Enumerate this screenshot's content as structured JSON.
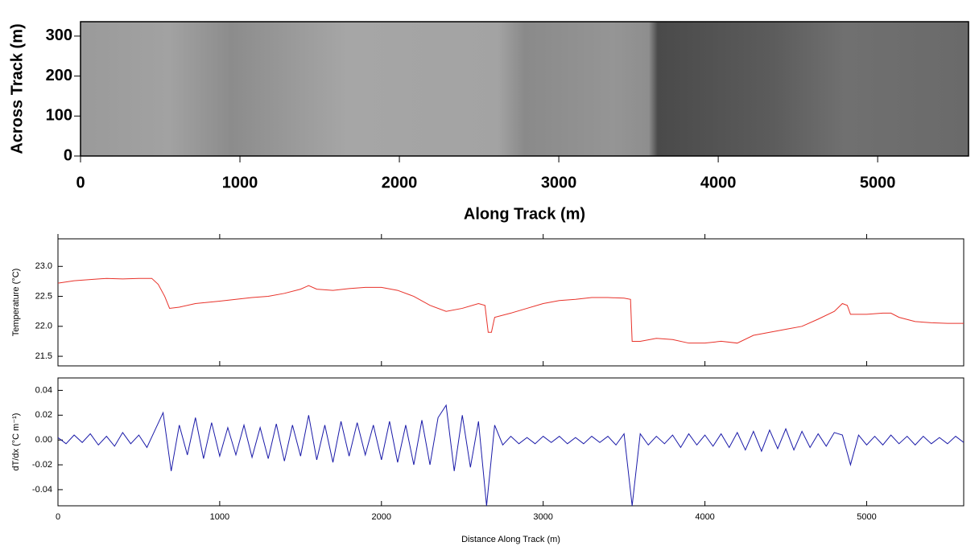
{
  "chart_data": [
    {
      "type": "image",
      "xlabel": "Along Track (m)",
      "ylabel": "Across Track (m)",
      "xlim": [
        0,
        5570
      ],
      "ylim": [
        0,
        336
      ],
      "xticks": [
        0,
        1000,
        2000,
        3000,
        4000,
        5000
      ],
      "yticks": [
        0,
        100,
        200,
        300
      ]
    },
    {
      "type": "line",
      "ylabel": "Temperature (°C)",
      "color": "#e8322a",
      "xlim": [
        0,
        5600
      ],
      "ylim": [
        21.34,
        23.46
      ],
      "xticks": [
        0,
        1000,
        2000,
        3000,
        4000,
        5000
      ],
      "yticks": [
        {
          "value": 21.5,
          "label": "21.5"
        },
        {
          "value": 22,
          "label": "22.0"
        },
        {
          "value": 22.5,
          "label": "22.5"
        },
        {
          "value": 23,
          "label": "23.0"
        }
      ],
      "x": [
        0,
        100,
        200,
        300,
        400,
        500,
        580,
        620,
        660,
        690,
        750,
        850,
        1000,
        1100,
        1200,
        1300,
        1400,
        1500,
        1550,
        1600,
        1700,
        1800,
        1900,
        2000,
        2100,
        2200,
        2300,
        2400,
        2500,
        2600,
        2640,
        2660,
        2680,
        2700,
        2800,
        2900,
        3000,
        3100,
        3200,
        3300,
        3400,
        3500,
        3540,
        3550,
        3600,
        3700,
        3800,
        3900,
        4000,
        4100,
        4200,
        4300,
        4400,
        4500,
        4600,
        4700,
        4800,
        4850,
        4880,
        4900,
        5000,
        5100,
        5150,
        5200,
        5300,
        5400,
        5500,
        5600
      ],
      "values": [
        22.72,
        22.76,
        22.78,
        22.8,
        22.79,
        22.8,
        22.8,
        22.7,
        22.5,
        22.3,
        22.32,
        22.38,
        22.42,
        22.45,
        22.48,
        22.5,
        22.55,
        22.62,
        22.68,
        22.62,
        22.6,
        22.63,
        22.65,
        22.65,
        22.6,
        22.5,
        22.35,
        22.25,
        22.3,
        22.38,
        22.35,
        21.9,
        21.9,
        22.15,
        22.22,
        22.3,
        22.38,
        22.43,
        22.45,
        22.48,
        22.48,
        22.47,
        22.45,
        21.75,
        21.75,
        21.8,
        21.78,
        21.72,
        21.72,
        21.75,
        21.72,
        21.85,
        21.9,
        21.95,
        22.0,
        22.12,
        22.25,
        22.38,
        22.35,
        22.2,
        22.2,
        22.22,
        22.22,
        22.15,
        22.08,
        22.06,
        22.05,
        22.05
      ]
    },
    {
      "type": "line",
      "ylabel": "dT/dx (°C m⁻¹)",
      "xlabel": "Distance Along Track (m)",
      "color": "#1a1aa8",
      "xlim": [
        0,
        5600
      ],
      "ylim": [
        -0.053,
        0.05
      ],
      "xticks": [
        0,
        1000,
        2000,
        3000,
        4000,
        5000
      ],
      "yticks": [
        {
          "value": -0.04,
          "label": "-0.04"
        },
        {
          "value": -0.02,
          "label": "-0.02"
        },
        {
          "value": 0,
          "label": "0.00"
        },
        {
          "value": 0.02,
          "label": "0.02"
        },
        {
          "value": 0.04,
          "label": "0.04"
        }
      ],
      "x": [
        0,
        50,
        100,
        150,
        200,
        250,
        300,
        350,
        400,
        450,
        500,
        550,
        600,
        650,
        700,
        750,
        800,
        850,
        900,
        950,
        1000,
        1050,
        1100,
        1150,
        1200,
        1250,
        1300,
        1350,
        1400,
        1450,
        1500,
        1550,
        1600,
        1650,
        1700,
        1750,
        1800,
        1850,
        1900,
        1950,
        2000,
        2050,
        2100,
        2150,
        2200,
        2250,
        2300,
        2350,
        2400,
        2450,
        2500,
        2550,
        2600,
        2650,
        2700,
        2750,
        2800,
        2850,
        2900,
        2950,
        3000,
        3050,
        3100,
        3150,
        3200,
        3250,
        3300,
        3350,
        3400,
        3450,
        3500,
        3550,
        3600,
        3650,
        3700,
        3750,
        3800,
        3850,
        3900,
        3950,
        4000,
        4050,
        4100,
        4150,
        4200,
        4250,
        4300,
        4350,
        4400,
        4450,
        4500,
        4550,
        4600,
        4650,
        4700,
        4750,
        4800,
        4850,
        4900,
        4950,
        5000,
        5050,
        5100,
        5150,
        5200,
        5250,
        5300,
        5350,
        5400,
        5450,
        5500,
        5550,
        5600
      ],
      "values": [
        0.002,
        -0.003,
        0.004,
        -0.002,
        0.005,
        -0.004,
        0.003,
        -0.005,
        0.006,
        -0.003,
        0.004,
        -0.006,
        0.008,
        0.022,
        -0.025,
        0.012,
        -0.012,
        0.018,
        -0.015,
        0.014,
        -0.013,
        0.01,
        -0.012,
        0.012,
        -0.014,
        0.01,
        -0.015,
        0.013,
        -0.017,
        0.012,
        -0.013,
        0.02,
        -0.016,
        0.012,
        -0.018,
        0.015,
        -0.013,
        0.014,
        -0.012,
        0.012,
        -0.016,
        0.015,
        -0.018,
        0.012,
        -0.02,
        0.016,
        -0.02,
        0.018,
        0.028,
        -0.025,
        0.02,
        -0.022,
        0.015,
        -0.053,
        0.012,
        -0.004,
        0.003,
        -0.003,
        0.002,
        -0.003,
        0.003,
        -0.002,
        0.003,
        -0.003,
        0.002,
        -0.003,
        0.003,
        -0.002,
        0.003,
        -0.004,
        0.005,
        -0.053,
        0.005,
        -0.004,
        0.003,
        -0.003,
        0.004,
        -0.006,
        0.005,
        -0.004,
        0.004,
        -0.005,
        0.005,
        -0.006,
        0.006,
        -0.008,
        0.007,
        -0.009,
        0.008,
        -0.007,
        0.009,
        -0.008,
        0.007,
        -0.006,
        0.005,
        -0.005,
        0.006,
        0.004,
        -0.02,
        0.004,
        -0.004,
        0.003,
        -0.004,
        0.004,
        -0.003,
        0.003,
        -0.004,
        0.003,
        -0.003,
        0.002,
        -0.003,
        0.003,
        -0.002
      ]
    }
  ]
}
